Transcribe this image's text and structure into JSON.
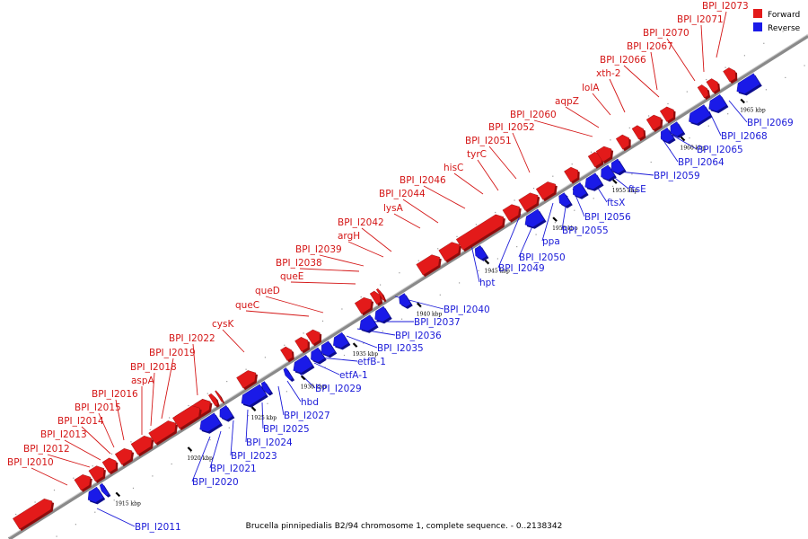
{
  "caption": "Brucella pinnipedialis B2/94 chromosome 1, complete sequence. - 0..2138342",
  "legend": [
    {
      "label": "Forward",
      "color": "#e31a1a"
    },
    {
      "label": "Reverse",
      "color": "#1a1ae8"
    }
  ],
  "kbp_marks": [
    "1915 kbp",
    "1920 kbp",
    "1925 kbp",
    "1930 kbp",
    "1935 kbp",
    "1940 kbp",
    "1945 kbp",
    "1950 kbp",
    "1955 kbp",
    "1960 kbp",
    "1965 kbp"
  ],
  "forward_genes": [
    "BPI_I2010",
    "BPI_I2012",
    "BPI_I2013",
    "BPI_I2014",
    "BPI_I2015",
    "BPI_I2016",
    "aspA",
    "BPI_I2018",
    "BPI_I2019",
    "BPI_I2022",
    "cysK",
    "queC",
    "queD",
    "queE",
    "BPI_I2038",
    "BPI_I2039",
    "argH",
    "BPI_I2042",
    "lysA",
    "BPI_I2044",
    "BPI_I2046",
    "hisC",
    "tyrC",
    "BPI_I2051",
    "BPI_I2052",
    "BPI_I2060",
    "aqpZ",
    "lolA",
    "xth-2",
    "BPI_I2066",
    "BPI_I2067",
    "BPI_I2070",
    "BPI_I2071",
    "BPI_I2073"
  ],
  "reverse_genes": [
    "BPI_I2011",
    "BPI_I2020",
    "BPI_I2021",
    "BPI_I2023",
    "BPI_I2024",
    "BPI_I2025",
    "BPI_I2027",
    "hbd",
    "BPI_I2029",
    "etfA-1",
    "etfB-1",
    "BPI_I2035",
    "BPI_I2036",
    "BPI_I2037",
    "BPI_I2040",
    "hpt",
    "BPI_I2049",
    "BPI_I2050",
    "ppa",
    "BPI_I2055",
    "BPI_I2056",
    "ftsX",
    "ftsE",
    "BPI_I2059",
    "BPI_I2064",
    "BPI_I2065",
    "BPI_I2068",
    "BPI_I2069"
  ]
}
